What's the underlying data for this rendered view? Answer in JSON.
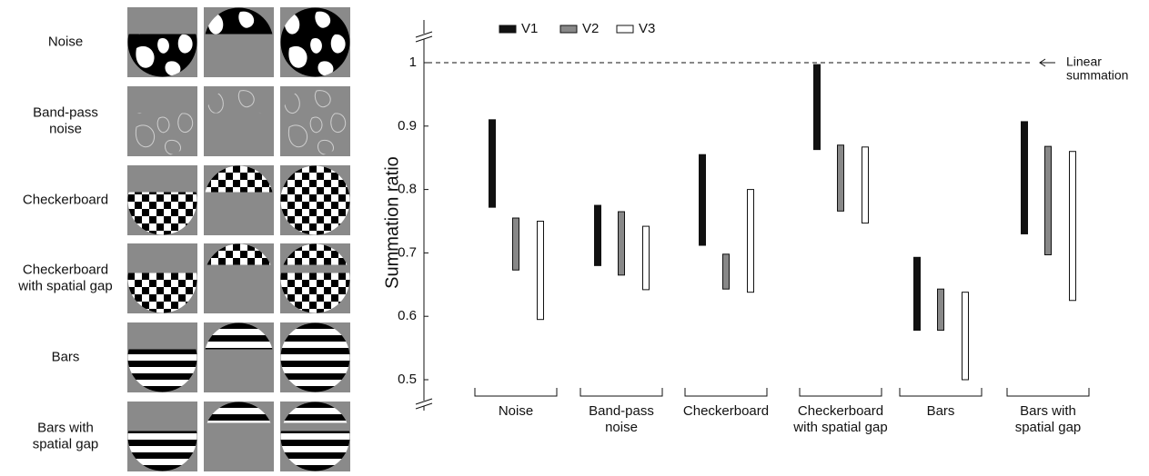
{
  "stimuli": {
    "rows": [
      [
        "Noise"
      ],
      [
        "Band-pass",
        "noise"
      ],
      [
        "Checkerboard"
      ],
      [
        "Checkerboard",
        "with spatial gap"
      ],
      [
        "Bars"
      ],
      [
        "Bars with",
        "spatial gap"
      ]
    ]
  },
  "chart_data": {
    "type": "range-bar",
    "y_label": "Summation ratio",
    "categories": [
      [
        "Noise"
      ],
      [
        "Band-pass",
        "noise"
      ],
      [
        "Checkerboard"
      ],
      [
        "Checkerboard",
        "with spatial gap"
      ],
      [
        "Bars"
      ],
      [
        "Bars with",
        "spatial gap"
      ]
    ],
    "series": [
      {
        "name": "V1",
        "color": "#111111",
        "values": [
          [
            0.772,
            0.91
          ],
          [
            0.68,
            0.775
          ],
          [
            0.712,
            0.855
          ],
          [
            0.863,
            0.997
          ],
          [
            0.578,
            0.693
          ],
          [
            0.73,
            0.907
          ]
        ]
      },
      {
        "name": "V2",
        "color": "#888888",
        "values": [
          [
            0.673,
            0.755
          ],
          [
            0.665,
            0.765
          ],
          [
            0.643,
            0.698
          ],
          [
            0.766,
            0.87
          ],
          [
            0.578,
            0.643
          ],
          [
            0.697,
            0.868
          ]
        ]
      },
      {
        "name": "V3",
        "color": "#ffffff",
        "values": [
          [
            0.595,
            0.75
          ],
          [
            0.642,
            0.742
          ],
          [
            0.638,
            0.8
          ],
          [
            0.747,
            0.867
          ],
          [
            0.5,
            0.638
          ],
          [
            0.625,
            0.86
          ]
        ]
      }
    ],
    "ylim": [
      0.5,
      1
    ],
    "yticks": [
      0.5,
      0.6,
      0.7,
      0.8,
      0.9,
      1
    ],
    "annotation": {
      "value": 1,
      "text": [
        "Linear",
        "summation"
      ]
    }
  }
}
